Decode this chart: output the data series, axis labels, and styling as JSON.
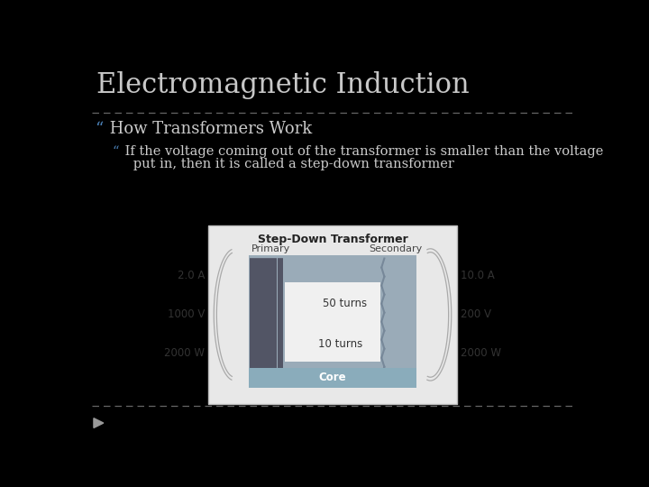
{
  "background_color": "#000000",
  "title": "Electromagnetic Induction",
  "title_color": "#c8c8c8",
  "title_fontsize": 22,
  "separator_color": "#666666",
  "bullet1_quote": "“",
  "bullet1_text": " How Transformers Work",
  "bullet1_color": "#cccccc",
  "bullet1_quote_color": "#4a7fb5",
  "bullet1_fontsize": 13,
  "bullet2_quote": "“",
  "bullet2_quote_color": "#4a7fb5",
  "bullet2_line1": " If the voltage coming out of the transformer is smaller than the voltage",
  "bullet2_line2": "   put in, then it is called a step-down transformer",
  "bullet2_color": "#cccccc",
  "bullet2_fontsize": 10.5,
  "diagram_title": "Step-Down Transformer",
  "diagram_primary": "Primary",
  "diagram_secondary": "Secondary",
  "diagram_left_vals": [
    "2.0 A",
    "1000 V",
    "2000 W"
  ],
  "diagram_right_vals": [
    "10.0 A",
    "200 V",
    "2000 W"
  ],
  "diagram_inner_top": "50 turns",
  "diagram_inner_bottom": "10 turns",
  "diagram_core": "Core",
  "footer_color": "#666666"
}
